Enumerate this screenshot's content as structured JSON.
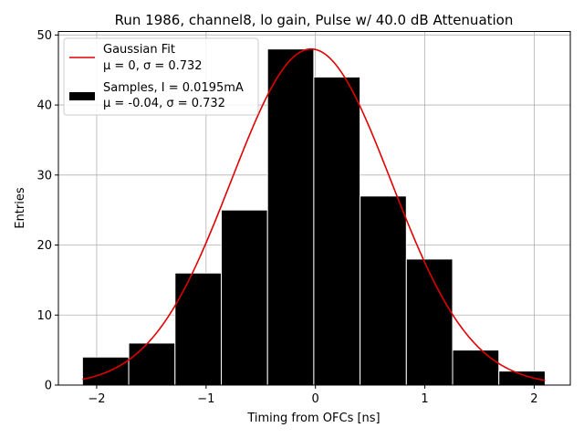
{
  "chart_data": {
    "type": "bar",
    "title": "Run 1986, channel8, lo gain, Pulse w/ 40.0 dB Attenuation",
    "xlabel": "Timing from OFCs [ns]",
    "ylabel": "Entries",
    "xlim": [
      -2.35,
      2.33
    ],
    "ylim": [
      0,
      50.5
    ],
    "xticks": [
      -2,
      -1,
      0,
      1,
      2
    ],
    "xtick_labels": [
      "−2",
      "−1",
      "0",
      "1",
      "2"
    ],
    "yticks": [
      0,
      10,
      20,
      30,
      40,
      50
    ],
    "ytick_labels": [
      "0",
      "10",
      "20",
      "30",
      "40",
      "50"
    ],
    "grid": true,
    "legend_position": "top-left",
    "histogram": {
      "name": "Samples, I = 0.0195mA",
      "stats": "μ = -0.04, σ = 0.732",
      "color": "#000000",
      "bin_edges": [
        -2.13,
        -1.707,
        -1.284,
        -0.861,
        -0.438,
        -0.015,
        0.408,
        0.831,
        1.254,
        1.677,
        2.1
      ],
      "values": [
        4,
        6,
        16,
        25,
        48,
        44,
        27,
        18,
        5,
        2
      ]
    },
    "fit": {
      "name": "Gaussian Fit",
      "stats": "μ = 0, σ = 0.732",
      "color": "#e00000",
      "amplitude": 48,
      "mu": -0.04,
      "sigma": 0.732,
      "x_range": [
        -2.13,
        2.1
      ]
    }
  }
}
